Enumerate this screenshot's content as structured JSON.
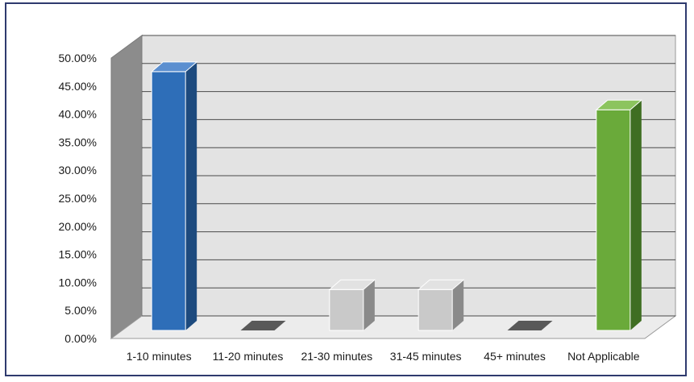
{
  "chart_data": {
    "type": "bar",
    "style": "3d-column",
    "categories": [
      "1-10 minutes",
      "11-20 minutes",
      "21-30 minutes",
      "31-45 minutes",
      "45+ minutes",
      "Not Applicable"
    ],
    "values": [
      47.5,
      0,
      7.5,
      7.5,
      0,
      40.5
    ],
    "colors": [
      "#2e6eb8",
      "#7f7f7f",
      "#c9c9c9",
      "#c9c9c9",
      "#7f7f7f",
      "#6aaa3a"
    ],
    "side_colors": [
      "#1d4a7e",
      "#595959",
      "#8a8a8a",
      "#8a8a8a",
      "#595959",
      "#3f6e22"
    ],
    "top_colors": [
      "#5b8fd0",
      "#a5a5a5",
      "#e2e2e2",
      "#e2e2e2",
      "#a5a5a5",
      "#8cc45e"
    ],
    "y_ticks": [
      "0.00%",
      "5.00%",
      "10.00%",
      "15.00%",
      "20.00%",
      "25.00%",
      "30.00%",
      "35.00%",
      "40.00%",
      "45.00%",
      "50.00%"
    ],
    "ylim": [
      0,
      50
    ],
    "grid": true,
    "title": "",
    "xlabel": "",
    "ylabel": ""
  }
}
